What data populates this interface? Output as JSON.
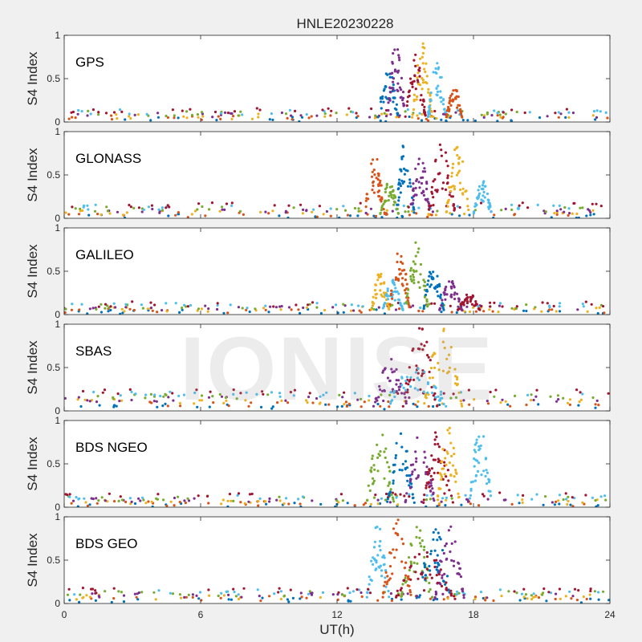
{
  "figure_title": "HNLE20230228",
  "watermark_text": "IONISE",
  "colors": [
    "#0072bd",
    "#d95319",
    "#edb120",
    "#7e2f8e",
    "#77ac30",
    "#4dbeee",
    "#a2142f"
  ],
  "chart_data": [
    {
      "type": "scatter",
      "panel_label": "GPS",
      "ylabel": "S4 Index",
      "xlim": [
        0,
        24
      ],
      "ylim": [
        0,
        1
      ],
      "yticks": [
        0,
        0.5,
        1
      ],
      "ytick_labels": [
        "0",
        "0.5",
        "1"
      ],
      "xticks": [
        0,
        6,
        12,
        18,
        24
      ],
      "xtick_labels": [],
      "grid": false,
      "baseline": [
        0.03,
        0.13
      ],
      "events": [
        {
          "x": [
            13.8,
            14.7
          ],
          "peak": 0.65
        },
        {
          "x": [
            14.2,
            15.0
          ],
          "peak": 0.93
        },
        {
          "x": [
            15.0,
            15.9
          ],
          "peak": 0.78
        },
        {
          "x": [
            15.3,
            16.2
          ],
          "peak": 0.93
        },
        {
          "x": [
            16.0,
            16.8
          ],
          "peak": 0.75
        },
        {
          "x": [
            16.8,
            17.5
          ],
          "peak": 0.43
        }
      ]
    },
    {
      "type": "scatter",
      "panel_label": "GLONASS",
      "ylabel": "S4 Index",
      "xlim": [
        0,
        24
      ],
      "ylim": [
        0,
        1
      ],
      "yticks": [
        0,
        0.5,
        1
      ],
      "ytick_labels": [
        "0",
        "0.5",
        "1"
      ],
      "xticks": [
        0,
        6,
        12,
        18,
        24
      ],
      "xtick_labels": [],
      "grid": false,
      "baseline": [
        0.02,
        0.15
      ],
      "events": [
        {
          "x": [
            13.2,
            14.1
          ],
          "peak": 0.75
        },
        {
          "x": [
            13.9,
            14.7
          ],
          "peak": 0.45
        },
        {
          "x": [
            14.6,
            15.4
          ],
          "peak": 0.95
        },
        {
          "x": [
            15.2,
            16.1
          ],
          "peak": 0.75
        },
        {
          "x": [
            16.0,
            17.2
          ],
          "peak": 0.88
        },
        {
          "x": [
            16.8,
            17.8
          ],
          "peak": 0.88
        },
        {
          "x": [
            18.0,
            18.8
          ],
          "peak": 0.45
        }
      ]
    },
    {
      "type": "scatter",
      "panel_label": "GALILEO",
      "ylabel": "S4 Index",
      "xlim": [
        0,
        24
      ],
      "ylim": [
        0,
        1
      ],
      "yticks": [
        0,
        0.5,
        1
      ],
      "ytick_labels": [
        "0",
        "0.5",
        "1"
      ],
      "xticks": [
        0,
        6,
        12,
        18,
        24
      ],
      "xtick_labels": [],
      "grid": false,
      "baseline": [
        0.03,
        0.12
      ],
      "events": [
        {
          "x": [
            13.5,
            14.3
          ],
          "peak": 0.5
        },
        {
          "x": [
            14.0,
            14.9
          ],
          "peak": 0.4
        },
        {
          "x": [
            14.3,
            15.2
          ],
          "peak": 0.85
        },
        {
          "x": [
            15.0,
            16.0
          ],
          "peak": 0.85
        },
        {
          "x": [
            15.8,
            16.7
          ],
          "peak": 0.6
        },
        {
          "x": [
            16.5,
            17.5
          ],
          "peak": 0.4
        },
        {
          "x": [
            17.3,
            18.3
          ],
          "peak": 0.25
        }
      ]
    },
    {
      "type": "scatter",
      "panel_label": "SBAS",
      "ylabel": "S4 Index",
      "xlim": [
        0,
        24
      ],
      "ylim": [
        0,
        1
      ],
      "yticks": [
        0,
        0.5,
        1
      ],
      "ytick_labels": [
        "0",
        "0.5",
        "1"
      ],
      "xticks": [
        0,
        6,
        12,
        18,
        24
      ],
      "xtick_labels": [],
      "grid": false,
      "baseline": [
        0.05,
        0.22
      ],
      "events": [
        {
          "x": [
            13.6,
            15.1
          ],
          "peak": 0.6
        },
        {
          "x": [
            14.9,
            16.4
          ],
          "peak": 0.98
        },
        {
          "x": [
            15.8,
            17.5
          ],
          "peak": 0.95
        },
        {
          "x": [
            14.2,
            16.8
          ],
          "peak": 0.55
        }
      ]
    },
    {
      "type": "scatter",
      "panel_label": "BDS NGEO",
      "ylabel": "S4 Index",
      "xlim": [
        0,
        24
      ],
      "ylim": [
        0,
        1
      ],
      "yticks": [
        0,
        0.5,
        1
      ],
      "ytick_labels": [
        "0",
        "0.5",
        "1"
      ],
      "xticks": [
        0,
        6,
        12,
        18,
        24
      ],
      "xtick_labels": [],
      "grid": false,
      "baseline": [
        0.02,
        0.14
      ],
      "events": [
        {
          "x": [
            13.3,
            14.5
          ],
          "peak": 0.93
        },
        {
          "x": [
            14.2,
            15.4
          ],
          "peak": 0.85
        },
        {
          "x": [
            15.0,
            16.3
          ],
          "peak": 0.85
        },
        {
          "x": [
            15.8,
            17.1
          ],
          "peak": 0.93
        },
        {
          "x": [
            16.4,
            17.4
          ],
          "peak": 0.97
        },
        {
          "x": [
            17.8,
            18.8
          ],
          "peak": 0.93
        }
      ]
    },
    {
      "type": "scatter",
      "panel_label": "BDS GEO",
      "ylabel": "S4 Index",
      "xlabel": "UT(h)",
      "xlim": [
        0,
        24
      ],
      "ylim": [
        0,
        1
      ],
      "yticks": [
        0,
        0.5,
        1
      ],
      "ytick_labels": [
        "0",
        "0.5",
        "1"
      ],
      "xticks": [
        0,
        6,
        12,
        18,
        24
      ],
      "xtick_labels": [
        "0",
        "6",
        "12",
        "18",
        "24"
      ],
      "grid": false,
      "baseline": [
        0.04,
        0.15
      ],
      "events": [
        {
          "x": [
            13.3,
            14.3
          ],
          "peak": 0.92
        },
        {
          "x": [
            14.0,
            15.3
          ],
          "peak": 0.97
        },
        {
          "x": [
            14.8,
            16.2
          ],
          "peak": 0.9
        },
        {
          "x": [
            15.6,
            17.0
          ],
          "peak": 0.92
        },
        {
          "x": [
            16.3,
            17.6
          ],
          "peak": 0.9
        },
        {
          "x": [
            14.5,
            17.2
          ],
          "peak": 0.6
        }
      ]
    }
  ]
}
